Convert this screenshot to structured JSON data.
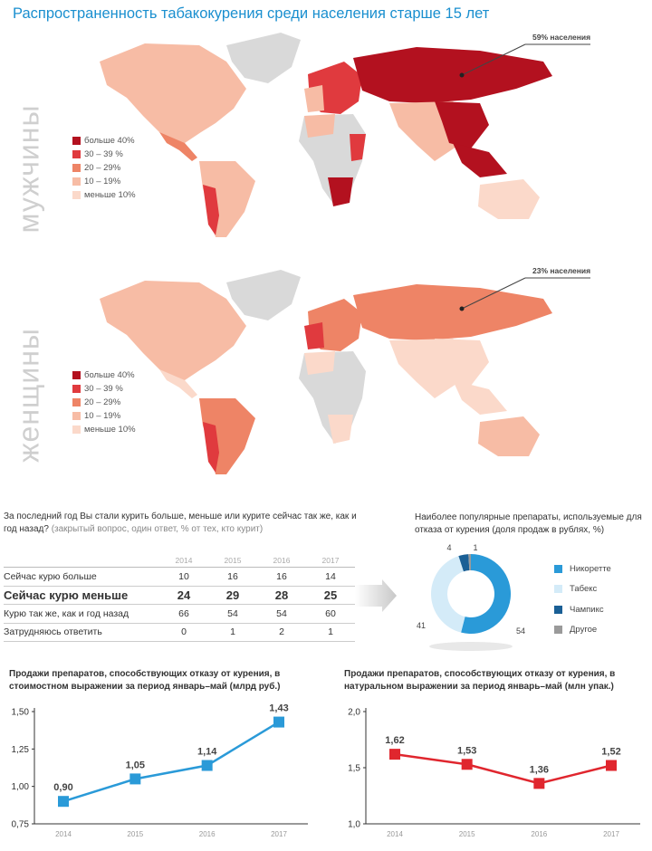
{
  "title": "Распространенность табакокурения среди населения старше 15 лет",
  "maps": {
    "men": {
      "label": "мужчины",
      "callout": "59% населения",
      "legend": [
        {
          "label": "больше 40%",
          "color": "#b3111f"
        },
        {
          "label": "30 – 39 %",
          "color": "#e03a3e"
        },
        {
          "label": "20 – 29%",
          "color": "#ee8466"
        },
        {
          "label": "10 – 19%",
          "color": "#f7bca5"
        },
        {
          "label": "меньше 10%",
          "color": "#fbd9ca"
        }
      ]
    },
    "women": {
      "label": "женщины",
      "callout": "23% населения",
      "legend": [
        {
          "label": "больше 40%",
          "color": "#b3111f"
        },
        {
          "label": "30 – 39 %",
          "color": "#e03a3e"
        },
        {
          "label": "20 – 29%",
          "color": "#ee8466"
        },
        {
          "label": "10 – 19%",
          "color": "#f7bca5"
        },
        {
          "label": "меньше 10%",
          "color": "#fbd9ca"
        }
      ]
    }
  },
  "survey": {
    "question": "За последний год Вы стали курить больше, меньше или курите сейчас так же, как и год назад?",
    "note": "(закрытый вопрос, один ответ, % от тех, кто курит)",
    "years": [
      "2014",
      "2015",
      "2016",
      "2017"
    ],
    "rows": [
      {
        "label": "Сейчас курю больше",
        "values": [
          "10",
          "16",
          "16",
          "14"
        ]
      },
      {
        "label": "Сейчас курю меньше",
        "values": [
          "24",
          "29",
          "28",
          "25"
        ]
      },
      {
        "label": "Курю так же, как и год назад",
        "values": [
          "66",
          "54",
          "54",
          "60"
        ]
      },
      {
        "label": "Затрудняюсь ответить",
        "values": [
          "0",
          "1",
          "2",
          "1"
        ]
      }
    ]
  },
  "chart_data": [
    {
      "type": "pie",
      "title": "Наиболее популярные препараты, используемые для отказа от курения (доля продаж в рублях, %)",
      "categories": [
        "Никоретте",
        "Табекс",
        "Чампикс",
        "Другое"
      ],
      "values": [
        54,
        41,
        4,
        1
      ],
      "labels": [
        "54",
        "41",
        "4",
        "1"
      ],
      "colors": [
        "#2a9ad8",
        "#d4ebf8",
        "#1a5f95",
        "#9a9a9a"
      ],
      "donut": true
    },
    {
      "type": "line",
      "title": "Продажи препаратов, способствующих отказу от курения, в стоимостном выражении за период январь–май (млрд руб.)",
      "x": [
        "2014",
        "2015",
        "2016",
        "2017"
      ],
      "values": [
        0.9,
        1.05,
        1.14,
        1.43
      ],
      "labels": [
        "0,90",
        "1,05",
        "1,14",
        "1,43"
      ],
      "ylim": [
        0.75,
        1.5
      ],
      "yticks": [
        "0,75",
        "1,00",
        "1,25",
        "1,50"
      ],
      "color": "#2a9ad8"
    },
    {
      "type": "line",
      "title": "Продажи препаратов, способствующих отказу от курения, в натуральном выражении за период январь–май (млн упак.)",
      "x": [
        "2014",
        "2015",
        "2016",
        "2017"
      ],
      "values": [
        1.62,
        1.53,
        1.36,
        1.52
      ],
      "labels": [
        "1,62",
        "1,53",
        "1,36",
        "1,52"
      ],
      "ylim": [
        1.0,
        2.0
      ],
      "yticks": [
        "1,0",
        "1,5",
        "2,0"
      ],
      "color": "#e0262e"
    }
  ]
}
